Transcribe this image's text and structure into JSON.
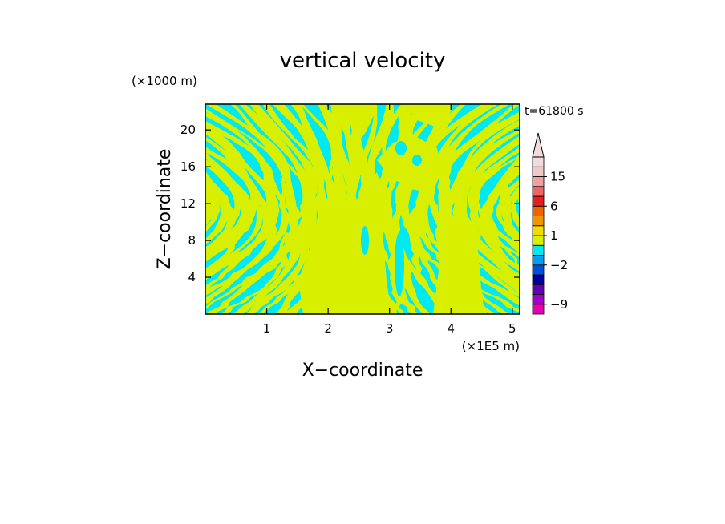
{
  "chart_data": {
    "type": "heatmap",
    "title": "vertical velocity",
    "xlabel": "X−coordinate",
    "ylabel": "Z−coordinate",
    "x_unit_label": "(×1E5 m)",
    "y_unit_label": "(×1000 m)",
    "time_label": "t=61800 s",
    "xlim": [
      0,
      5.12
    ],
    "ylim": [
      0,
      22.8
    ],
    "xticks": [
      1,
      2,
      3,
      4,
      5
    ],
    "yticks": [
      4,
      8,
      12,
      16,
      20
    ],
    "x_tick_labels": [
      "1",
      "2",
      "3",
      "4",
      "5"
    ],
    "y_tick_labels": [
      "4",
      "8",
      "12",
      "16",
      "20"
    ],
    "field_regions": [
      {
        "name": "positive band",
        "color": "#d8f000"
      },
      {
        "name": "negative band",
        "color": "#00e8f0"
      }
    ],
    "colorbar": {
      "levels": [
        -11,
        -9,
        -7,
        -5,
        -3,
        -2,
        -1,
        0,
        1,
        2,
        3,
        6,
        9,
        12,
        15,
        18,
        21
      ],
      "colors": [
        "#e600b4",
        "#a000c8",
        "#6400b4",
        "#0000a0",
        "#0050dc",
        "#00a0f0",
        "#00e8f0",
        "#d8f000",
        "#f0dc00",
        "#f09600",
        "#f06400",
        "#e61e1e",
        "#f06464",
        "#f0a0a0",
        "#f0c8c8",
        "#f0dcdc"
      ],
      "tick_labels": [
        "15",
        "6",
        "1",
        "−2",
        "−9"
      ],
      "tick_values": [
        15,
        6,
        1,
        -2,
        -9
      ],
      "extend": "max"
    }
  }
}
